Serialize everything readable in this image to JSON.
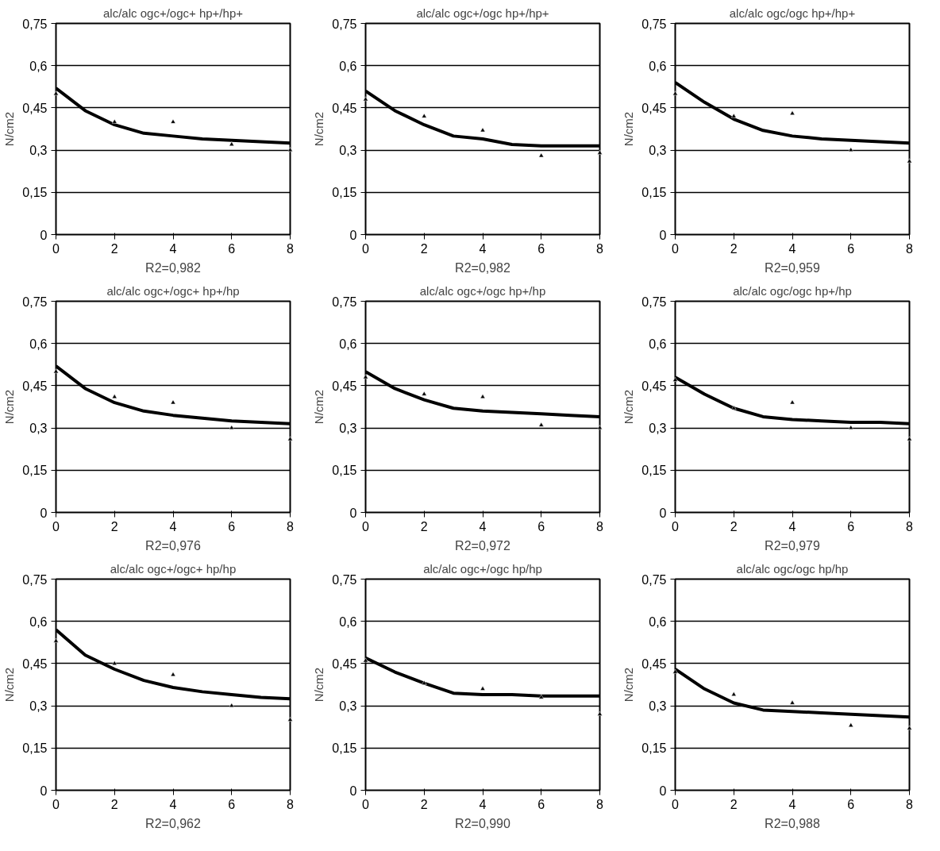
{
  "chart_data": [
    {
      "type": "scatter",
      "title": "alc/alc ogc+/ogc+ hp+/hp+",
      "ylabel": "N/cm2",
      "annotations": [
        "R2=0,982"
      ],
      "xlim": [
        0,
        8
      ],
      "xticks": [
        0,
        2,
        4,
        6,
        8
      ],
      "ylim": [
        0,
        0.75
      ],
      "yticks": [
        0,
        {
          "value": 0.15,
          "label": "0,15"
        },
        {
          "value": 0.3,
          "label": "0,3"
        },
        {
          "value": 0.45,
          "label": "0,45"
        },
        {
          "value": 0.6,
          "label": "0,6"
        },
        {
          "value": 0.75,
          "label": "0,75"
        }
      ],
      "grid": "y",
      "series": [
        {
          "marker": "triangle",
          "color": "#000000",
          "x": [
            0,
            2,
            4,
            6,
            8
          ],
          "values": [
            0.5,
            0.4,
            0.4,
            0.32,
            0.3
          ]
        },
        {
          "type": "line",
          "marker": "none",
          "color": "#000000",
          "x": [
            0,
            1,
            2,
            3,
            4,
            5,
            6,
            7,
            8
          ],
          "values": [
            0.52,
            0.44,
            0.39,
            0.36,
            0.35,
            0.34,
            0.335,
            0.33,
            0.325
          ]
        }
      ]
    },
    {
      "type": "scatter",
      "title": "alc/alc ogc+/ogc hp+/hp+",
      "ylabel": "N/cm2",
      "annotations": [
        "R2=0,982"
      ],
      "xlim": [
        0,
        8
      ],
      "xticks": [
        0,
        2,
        4,
        6,
        8
      ],
      "ylim": [
        0,
        0.75
      ],
      "yticks": [
        0,
        {
          "value": 0.15,
          "label": "0,15"
        },
        {
          "value": 0.3,
          "label": "0,3"
        },
        {
          "value": 0.45,
          "label": "0,45"
        },
        {
          "value": 0.6,
          "label": "0,6"
        },
        {
          "value": 0.75,
          "label": "0,75"
        }
      ],
      "grid": "y",
      "series": [
        {
          "marker": "triangle",
          "color": "#000000",
          "x": [
            0,
            2,
            4,
            6,
            8
          ],
          "values": [
            0.48,
            0.42,
            0.37,
            0.28,
            0.29
          ]
        },
        {
          "type": "line",
          "marker": "none",
          "color": "#000000",
          "x": [
            0,
            1,
            2,
            3,
            4,
            5,
            6,
            7,
            8
          ],
          "values": [
            0.51,
            0.44,
            0.39,
            0.35,
            0.34,
            0.32,
            0.315,
            0.315,
            0.315
          ]
        }
      ]
    },
    {
      "type": "scatter",
      "title": "alc/alc ogc/ogc hp+/hp+",
      "ylabel": "N/cm2",
      "annotations": [
        "R2=0,959"
      ],
      "xlim": [
        0,
        8
      ],
      "xticks": [
        0,
        2,
        4,
        6,
        8
      ],
      "ylim": [
        0,
        0.75
      ],
      "yticks": [
        0,
        {
          "value": 0.15,
          "label": "0,15"
        },
        {
          "value": 0.3,
          "label": "0,3"
        },
        {
          "value": 0.45,
          "label": "0,45"
        },
        {
          "value": 0.6,
          "label": "0,6"
        },
        {
          "value": 0.75,
          "label": "0,75"
        }
      ],
      "grid": "y",
      "series": [
        {
          "marker": "triangle",
          "color": "#000000",
          "x": [
            0,
            2,
            4,
            6,
            8
          ],
          "values": [
            0.5,
            0.42,
            0.43,
            0.3,
            0.26
          ]
        },
        {
          "type": "line",
          "marker": "none",
          "color": "#000000",
          "x": [
            0,
            1,
            2,
            3,
            4,
            5,
            6,
            7,
            8
          ],
          "values": [
            0.54,
            0.47,
            0.41,
            0.37,
            0.35,
            0.34,
            0.335,
            0.33,
            0.325
          ]
        }
      ]
    },
    {
      "type": "scatter",
      "title": "alc/alc ogc+/ogc+ hp+/hp",
      "ylabel": "N/cm2",
      "annotations": [
        "R2=0,976"
      ],
      "xlim": [
        0,
        8
      ],
      "xticks": [
        0,
        2,
        4,
        6,
        8
      ],
      "ylim": [
        0,
        0.75
      ],
      "yticks": [
        0,
        {
          "value": 0.15,
          "label": "0,15"
        },
        {
          "value": 0.3,
          "label": "0,3"
        },
        {
          "value": 0.45,
          "label": "0,45"
        },
        {
          "value": 0.6,
          "label": "0,6"
        },
        {
          "value": 0.75,
          "label": "0,75"
        }
      ],
      "grid": "y",
      "series": [
        {
          "marker": "triangle",
          "color": "#000000",
          "x": [
            0,
            2,
            4,
            6,
            8
          ],
          "values": [
            0.5,
            0.41,
            0.39,
            0.3,
            0.26
          ]
        },
        {
          "type": "line",
          "marker": "none",
          "color": "#000000",
          "x": [
            0,
            1,
            2,
            3,
            4,
            5,
            6,
            7,
            8
          ],
          "values": [
            0.52,
            0.44,
            0.39,
            0.36,
            0.345,
            0.335,
            0.325,
            0.32,
            0.315
          ]
        }
      ]
    },
    {
      "type": "scatter",
      "title": "alc/alc ogc+/ogc hp+/hp",
      "ylabel": "N/cm2",
      "annotations": [
        "R2=0,972"
      ],
      "xlim": [
        0,
        8
      ],
      "xticks": [
        0,
        2,
        4,
        6,
        8
      ],
      "ylim": [
        0,
        0.75
      ],
      "yticks": [
        0,
        {
          "value": 0.15,
          "label": "0,15"
        },
        {
          "value": 0.3,
          "label": "0,3"
        },
        {
          "value": 0.45,
          "label": "0,45"
        },
        {
          "value": 0.6,
          "label": "0,6"
        },
        {
          "value": 0.75,
          "label": "0,75"
        }
      ],
      "grid": "y",
      "series": [
        {
          "marker": "triangle",
          "color": "#000000",
          "x": [
            0,
            2,
            4,
            6,
            8
          ],
          "values": [
            0.48,
            0.42,
            0.41,
            0.31,
            0.3
          ]
        },
        {
          "type": "line",
          "marker": "none",
          "color": "#000000",
          "x": [
            0,
            1,
            2,
            3,
            4,
            5,
            6,
            7,
            8
          ],
          "values": [
            0.5,
            0.44,
            0.4,
            0.37,
            0.36,
            0.355,
            0.35,
            0.345,
            0.34
          ]
        }
      ]
    },
    {
      "type": "scatter",
      "title": "alc/alc ogc/ogc hp+/hp",
      "ylabel": "N/cm2",
      "annotations": [
        "R2=0,979"
      ],
      "xlim": [
        0,
        8
      ],
      "xticks": [
        0,
        2,
        4,
        6,
        8
      ],
      "ylim": [
        0,
        0.75
      ],
      "yticks": [
        0,
        {
          "value": 0.15,
          "label": "0,15"
        },
        {
          "value": 0.3,
          "label": "0,3"
        },
        {
          "value": 0.45,
          "label": "0,45"
        },
        {
          "value": 0.6,
          "label": "0,6"
        },
        {
          "value": 0.75,
          "label": "0,75"
        }
      ],
      "grid": "y",
      "series": [
        {
          "marker": "triangle",
          "color": "#000000",
          "x": [
            0,
            2,
            4,
            6,
            8
          ],
          "values": [
            0.47,
            0.37,
            0.39,
            0.3,
            0.26
          ]
        },
        {
          "type": "line",
          "marker": "none",
          "color": "#000000",
          "x": [
            0,
            1,
            2,
            3,
            4,
            5,
            6,
            7,
            8
          ],
          "values": [
            0.48,
            0.42,
            0.37,
            0.34,
            0.33,
            0.325,
            0.32,
            0.32,
            0.315
          ]
        }
      ]
    },
    {
      "type": "scatter",
      "title": "alc/alc ogc+/ogc+ hp/hp",
      "ylabel": "N/cm2",
      "annotations": [
        "R2=0,962"
      ],
      "xlim": [
        0,
        8
      ],
      "xticks": [
        0,
        2,
        4,
        6,
        8
      ],
      "ylim": [
        0,
        0.75
      ],
      "yticks": [
        0,
        {
          "value": 0.15,
          "label": "0,15"
        },
        {
          "value": 0.3,
          "label": "0,3"
        },
        {
          "value": 0.45,
          "label": "0,45"
        },
        {
          "value": 0.6,
          "label": "0,6"
        },
        {
          "value": 0.75,
          "label": "0,75"
        }
      ],
      "grid": "y",
      "series": [
        {
          "marker": "triangle",
          "color": "#000000",
          "x": [
            0,
            2,
            4,
            6,
            8
          ],
          "values": [
            0.53,
            0.45,
            0.41,
            0.3,
            0.25
          ]
        },
        {
          "type": "line",
          "marker": "none",
          "color": "#000000",
          "x": [
            0,
            1,
            2,
            3,
            4,
            5,
            6,
            7,
            8
          ],
          "values": [
            0.57,
            0.48,
            0.43,
            0.39,
            0.365,
            0.35,
            0.34,
            0.33,
            0.325
          ]
        }
      ]
    },
    {
      "type": "scatter",
      "title": "alc/alc ogc+/ogc hp/hp",
      "ylabel": "N/cm2",
      "annotations": [
        "R2=0,990"
      ],
      "xlim": [
        0,
        8
      ],
      "xticks": [
        0,
        2,
        4,
        6,
        8
      ],
      "ylim": [
        0,
        0.75
      ],
      "yticks": [
        0,
        {
          "value": 0.15,
          "label": "0,15"
        },
        {
          "value": 0.3,
          "label": "0,3"
        },
        {
          "value": 0.45,
          "label": "0,45"
        },
        {
          "value": 0.6,
          "label": "0,6"
        },
        {
          "value": 0.75,
          "label": "0,75"
        }
      ],
      "grid": "y",
      "series": [
        {
          "marker": "triangle",
          "color": "#000000",
          "x": [
            0,
            2,
            4,
            6,
            8
          ],
          "values": [
            0.46,
            0.38,
            0.36,
            0.33,
            0.27
          ]
        },
        {
          "type": "line",
          "marker": "none",
          "color": "#000000",
          "x": [
            0,
            1,
            2,
            3,
            4,
            5,
            6,
            7,
            8
          ],
          "values": [
            0.47,
            0.42,
            0.38,
            0.345,
            0.34,
            0.34,
            0.335,
            0.335,
            0.335
          ]
        }
      ]
    },
    {
      "type": "scatter",
      "title": "alc/alc ogc/ogc hp/hp",
      "ylabel": "N/cm2",
      "annotations": [
        "R2=0,988"
      ],
      "xlim": [
        0,
        8
      ],
      "xticks": [
        0,
        2,
        4,
        6,
        8
      ],
      "ylim": [
        0,
        0.75
      ],
      "yticks": [
        0,
        {
          "value": 0.15,
          "label": "0,15"
        },
        {
          "value": 0.3,
          "label": "0,3"
        },
        {
          "value": 0.45,
          "label": "0,45"
        },
        {
          "value": 0.6,
          "label": "0,6"
        },
        {
          "value": 0.75,
          "label": "0,75"
        }
      ],
      "grid": "y",
      "series": [
        {
          "marker": "triangle",
          "color": "#000000",
          "x": [
            0,
            2,
            4,
            6,
            8
          ],
          "values": [
            0.42,
            0.34,
            0.31,
            0.23,
            0.22
          ]
        },
        {
          "type": "line",
          "marker": "none",
          "color": "#000000",
          "x": [
            0,
            1,
            2,
            3,
            4,
            5,
            6,
            7,
            8
          ],
          "values": [
            0.43,
            0.36,
            0.31,
            0.285,
            0.28,
            0.275,
            0.27,
            0.265,
            0.26
          ]
        }
      ]
    }
  ]
}
